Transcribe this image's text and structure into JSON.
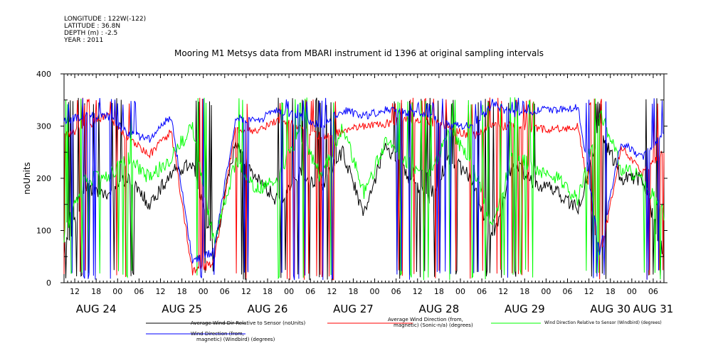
{
  "meta": {
    "longitude": "LONGITUDE : 122W(-122)",
    "latitude": "LATITUDE : 36.8N",
    "depth": "DEPTH (m) : -2.5",
    "year": "YEAR : 2011"
  },
  "chart_data": {
    "type": "line",
    "title": "Mooring M1 Metsys data from MBARI instrument id 1396 at original sampling intervals",
    "ylabel": "noUnits",
    "xlabel": "",
    "ylim": [
      0,
      400
    ],
    "yticks": [
      0,
      100,
      200,
      300,
      400
    ],
    "xlim": [
      "2011-08-24T03:00",
      "2011-08-31T03:00"
    ],
    "hour_ticks": [
      "06",
      "12",
      "18",
      "00"
    ],
    "day_labels": [
      "AUG 24",
      "AUG 25",
      "AUG 26",
      "AUG 27",
      "AUG 28",
      "AUG 29",
      "AUG 30",
      "AUG 31"
    ],
    "grid": false,
    "legend_position": "bottom",
    "series": [
      {
        "name": "Average Wind Dir Relative to Sensor (noUnits)",
        "color": "#000000",
        "approx_x_hours": [
          0,
          6,
          12,
          18,
          24,
          30,
          36,
          42,
          48,
          54,
          60,
          66,
          72,
          78,
          84,
          90,
          96,
          102,
          108,
          114,
          120,
          126,
          132,
          138,
          144,
          150,
          156,
          162,
          168
        ],
        "approx_values": [
          60,
          180,
          170,
          200,
          150,
          210,
          230,
          60,
          270,
          200,
          155,
          210,
          185,
          250,
          130,
          265,
          205,
          160,
          240,
          200,
          85,
          230,
          190,
          175,
          140,
          300,
          200,
          200,
          50
        ]
      },
      {
        "name": "Average Wind Direction (from, magnetic) (Sonic-n/a) (degrees)",
        "color": "#ff0000",
        "approx_x_hours": [
          0,
          6,
          12,
          18,
          24,
          30,
          36,
          42,
          48,
          54,
          60,
          66,
          72,
          78,
          84,
          90,
          96,
          102,
          108,
          114,
          120,
          126,
          132,
          138,
          144,
          150,
          156,
          162,
          168
        ],
        "approx_values": [
          280,
          300,
          320,
          275,
          245,
          290,
          20,
          40,
          295,
          290,
          310,
          300,
          280,
          290,
          300,
          305,
          310,
          310,
          295,
          280,
          300,
          300,
          295,
          295,
          300,
          40,
          260,
          210,
          250
        ]
      },
      {
        "name": "Wind Direction Relative to Sensor (Windbird) (degrees)",
        "color": "#00ff00",
        "approx_x_hours": [
          0,
          6,
          12,
          18,
          24,
          30,
          36,
          42,
          48,
          54,
          60,
          66,
          72,
          78,
          84,
          90,
          96,
          102,
          108,
          114,
          120,
          126,
          132,
          138,
          144,
          150,
          156,
          162,
          168
        ],
        "approx_values": [
          90,
          200,
          200,
          240,
          200,
          240,
          300,
          75,
          230,
          180,
          200,
          290,
          200,
          300,
          170,
          270,
          230,
          200,
          290,
          230,
          110,
          250,
          215,
          200,
          160,
          330,
          220,
          200,
          130
        ]
      },
      {
        "name": "Wind Direction (from, magnetic) (Windbird) (degrees)",
        "color": "#0000ff",
        "approx_x_hours": [
          0,
          6,
          12,
          18,
          24,
          30,
          36,
          42,
          48,
          54,
          60,
          66,
          72,
          78,
          84,
          90,
          96,
          102,
          108,
          114,
          120,
          126,
          132,
          138,
          144,
          150,
          156,
          162,
          168
        ],
        "approx_values": [
          310,
          320,
          320,
          285,
          275,
          320,
          40,
          60,
          315,
          310,
          330,
          320,
          300,
          330,
          320,
          330,
          325,
          320,
          300,
          300,
          340,
          325,
          330,
          330,
          335,
          60,
          270,
          240,
          290
        ]
      }
    ]
  }
}
